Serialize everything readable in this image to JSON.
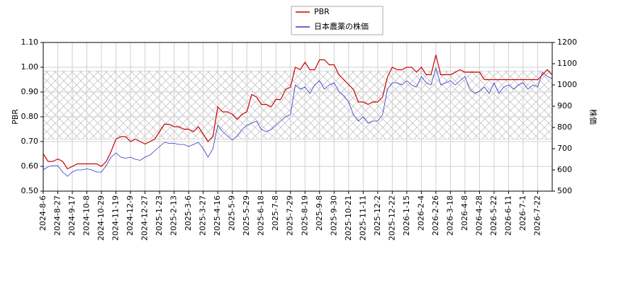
{
  "chart_data": {
    "type": "line",
    "categories": [
      "2024-8-6",
      null,
      null,
      "2024-8-27",
      null,
      null,
      "2024-9-17",
      null,
      null,
      "2024-10-8",
      null,
      null,
      "2024-10-29",
      null,
      null,
      "2024-11-19",
      null,
      null,
      "2024-12-9",
      null,
      null,
      "2024-12-27",
      null,
      null,
      "2025-1-23",
      null,
      null,
      "2025-2-13",
      null,
      null,
      "2025-3-6",
      null,
      null,
      "2025-3-27",
      null,
      null,
      "2025-4-16",
      null,
      null,
      "2025-5-9",
      null,
      null,
      "2025-5-29",
      null,
      null,
      "2025-6-18",
      null,
      null,
      "2025-7-8",
      null,
      null,
      "2025-7-29",
      null,
      null,
      "2025-8-19",
      null,
      null,
      "2025-9-8",
      null,
      null,
      "2025-9-30",
      null,
      null,
      "2025-10-21",
      null,
      null,
      "2025-11-11",
      null,
      null,
      "2025-12-2",
      null,
      null,
      "2025-12-22",
      null,
      null,
      "2026-1-15",
      null,
      null,
      "2026-2-4",
      null,
      null,
      "2026-2-26",
      null,
      null,
      "2026-3-18",
      null,
      null,
      "2026-4-8",
      null,
      null,
      "2026-4-28",
      null,
      null,
      "2026-5-22",
      null,
      null,
      "2026-6-11",
      null,
      null,
      "2026-7-1",
      null,
      null,
      "2026-7-22",
      null,
      null,
      null
    ],
    "series": [
      {
        "name": "PBR",
        "color": "#cc0000",
        "axis": "y",
        "values": [
          0.65,
          0.62,
          0.62,
          0.63,
          0.62,
          0.59,
          0.6,
          0.61,
          0.61,
          0.61,
          0.61,
          0.61,
          0.6,
          0.62,
          0.66,
          0.71,
          0.72,
          0.72,
          0.7,
          0.71,
          0.7,
          0.69,
          0.7,
          0.71,
          0.74,
          0.77,
          0.77,
          0.76,
          0.76,
          0.75,
          0.75,
          0.74,
          0.76,
          0.73,
          0.7,
          0.72,
          0.84,
          0.82,
          0.82,
          0.81,
          0.79,
          0.81,
          0.82,
          0.89,
          0.88,
          0.85,
          0.85,
          0.84,
          0.87,
          0.87,
          0.91,
          0.92,
          1.0,
          0.99,
          1.02,
          0.99,
          0.99,
          1.03,
          1.03,
          1.01,
          1.01,
          0.97,
          0.95,
          0.93,
          0.91,
          0.86,
          0.86,
          0.85,
          0.86,
          0.86,
          0.88,
          0.96,
          1.0,
          0.99,
          0.99,
          1.0,
          1.0,
          0.98,
          1.0,
          0.97,
          0.97,
          1.05,
          0.97,
          0.97,
          0.97,
          0.98,
          0.99,
          0.98,
          0.98,
          0.98,
          0.98,
          0.95,
          0.95,
          0.95,
          0.95,
          0.95,
          0.95,
          0.95,
          0.95,
          0.95,
          0.95,
          0.95,
          0.95,
          0.97,
          0.99,
          0.97
        ]
      },
      {
        "name": "日本農薬の株価",
        "color": "#3333cc",
        "axis": "y2",
        "values": [
          600,
          615,
          620,
          620,
          590,
          570,
          590,
          600,
          600,
          605,
          600,
          590,
          590,
          620,
          660,
          680,
          660,
          655,
          660,
          650,
          645,
          660,
          670,
          690,
          710,
          730,
          725,
          725,
          720,
          720,
          710,
          720,
          730,
          700,
          660,
          700,
          810,
          780,
          760,
          740,
          760,
          790,
          810,
          820,
          830,
          790,
          780,
          790,
          810,
          830,
          850,
          860,
          1000,
          980,
          990,
          960,
          1000,
          1020,
          980,
          1000,
          1010,
          970,
          950,
          920,
          860,
          830,
          850,
          820,
          830,
          830,
          860,
          980,
          1010,
          1010,
          1000,
          1020,
          1000,
          990,
          1040,
          1010,
          1000,
          1080,
          1000,
          1010,
          1020,
          1000,
          1020,
          1040,
          980,
          960,
          970,
          990,
          960,
          1010,
          960,
          990,
          1000,
          980,
          1000,
          1010,
          980,
          1000,
          990,
          1060,
          1040,
          1030
        ]
      }
    ],
    "ylabel": "PBR",
    "y2label": "株価",
    "ylim": [
      0.5,
      1.1
    ],
    "yticks": [
      {
        "value": 0.5,
        "label": "0.50"
      },
      {
        "value": 0.6,
        "label": "0.60"
      },
      {
        "value": 0.7,
        "label": "0.70"
      },
      {
        "value": 0.8,
        "label": "0.80"
      },
      {
        "value": 0.9,
        "label": "0.90"
      },
      {
        "value": 1.0,
        "label": "1.00"
      },
      {
        "value": 1.1,
        "label": "1.10"
      }
    ],
    "y2lim": [
      500,
      1200
    ],
    "y2ticks": [
      500,
      600,
      700,
      800,
      900,
      1000,
      1100,
      1200
    ],
    "shaded_range": [
      0.71,
      0.985
    ],
    "grid": true,
    "legend": "top"
  }
}
